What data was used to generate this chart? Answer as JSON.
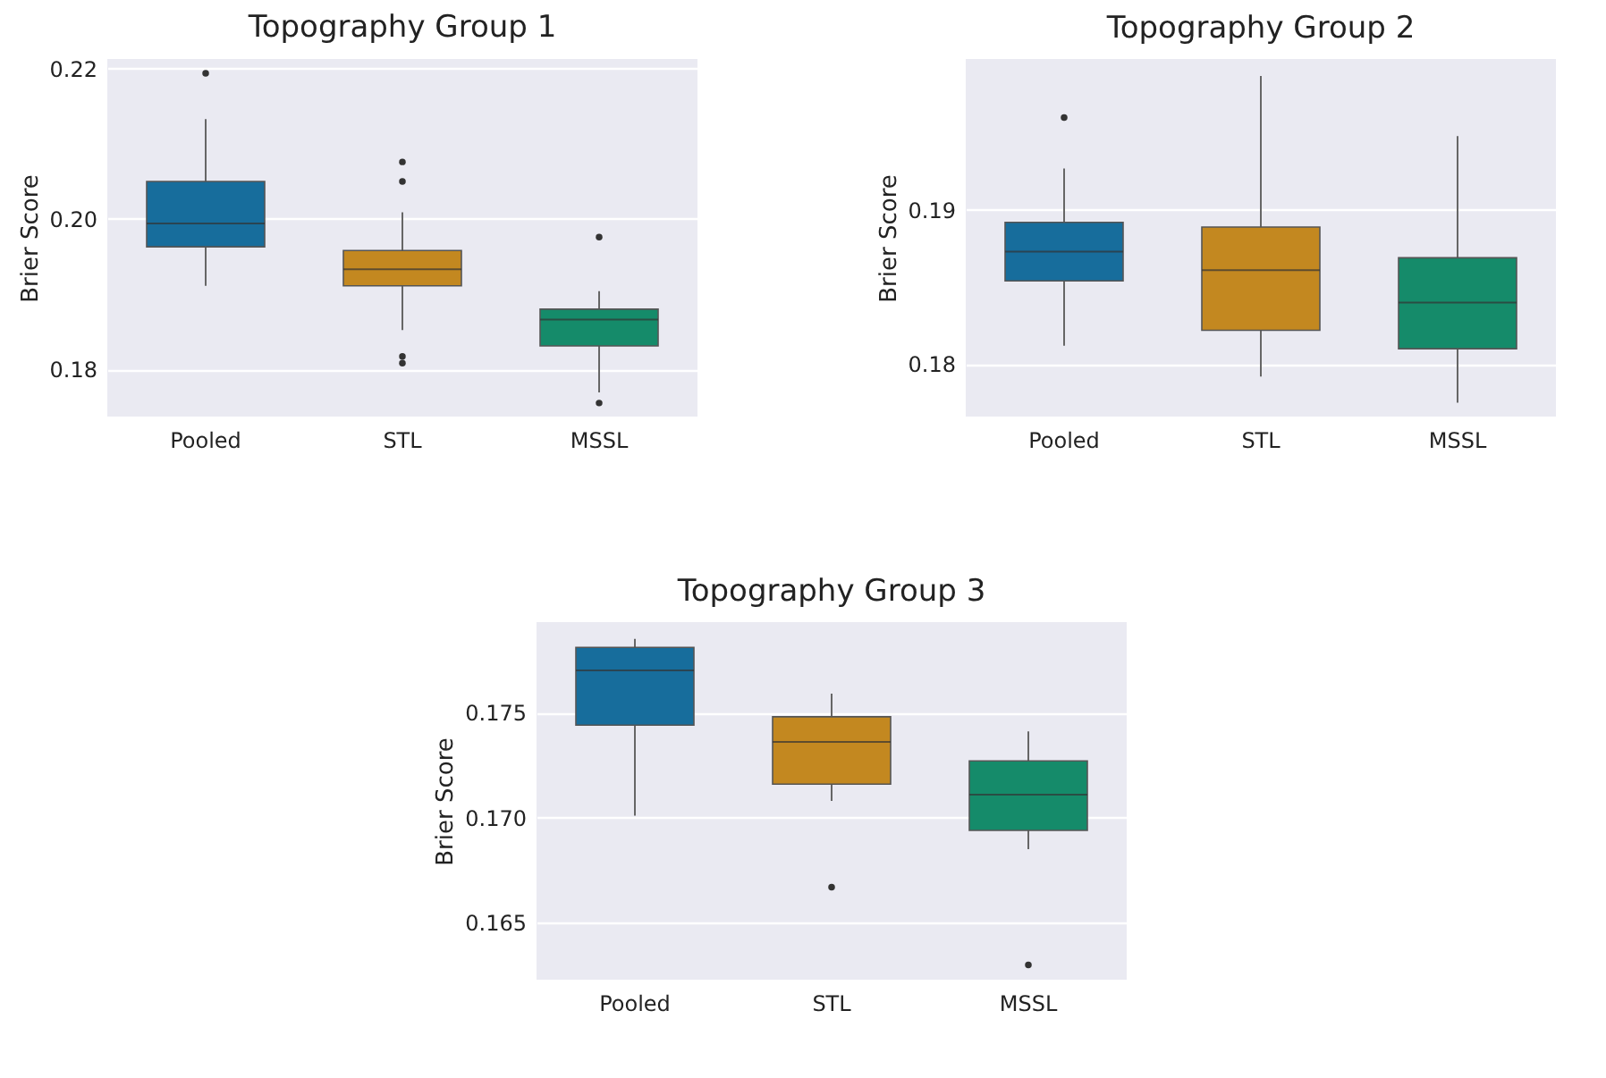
{
  "chart_data": [
    {
      "type": "box",
      "title": "Topography Group 1",
      "ylabel": "Brier Score",
      "categories": [
        "Pooled",
        "STL",
        "MSSL"
      ],
      "colors": [
        "#176d9c",
        "#c38820",
        "#158b6a"
      ],
      "grid": "y",
      "ylim": [
        0.1737,
        0.2213
      ],
      "yticks": [
        0.22,
        {
          "value": 0.2,
          "label": "0.20"
        },
        0.18
      ],
      "boxes": [
        {
          "low": 0.1911,
          "q1": 0.1963,
          "median": 0.1994,
          "q3": 0.205,
          "high": 0.2133,
          "outliers": [
            0.2194
          ]
        },
        {
          "low": 0.1852,
          "q1": 0.1911,
          "median": 0.1933,
          "q3": 0.1958,
          "high": 0.2009,
          "outliers": [
            0.2076,
            0.205,
            0.1817,
            0.1808
          ]
        },
        {
          "low": 0.1769,
          "q1": 0.1831,
          "median": 0.1866,
          "q3": 0.188,
          "high": 0.1904,
          "outliers": [
            0.1976,
            0.1755
          ]
        }
      ]
    },
    {
      "type": "box",
      "title": "Topography Group 2",
      "ylabel": "Brier Score",
      "categories": [
        "Pooled",
        "STL",
        "MSSL"
      ],
      "colors": [
        "#176d9c",
        "#c38820",
        "#158b6a"
      ],
      "grid": "y",
      "ylim": [
        0.1766,
        0.1998
      ],
      "yticks": [
        0.19,
        0.18
      ],
      "boxes": [
        {
          "low": 0.1812,
          "q1": 0.1854,
          "median": 0.1873,
          "q3": 0.1892,
          "high": 0.1927,
          "outliers": [
            0.196
          ]
        },
        {
          "low": 0.1792,
          "q1": 0.1822,
          "median": 0.1861,
          "q3": 0.1889,
          "high": 0.1987
        },
        {
          "low": 0.1775,
          "q1": 0.181,
          "median": 0.184,
          "q3": 0.1869,
          "high": 0.1948
        }
      ]
    },
    {
      "type": "box",
      "title": "Topography Group 3",
      "ylabel": "Brier Score",
      "categories": [
        "Pooled",
        "STL",
        "MSSL"
      ],
      "colors": [
        "#176d9c",
        "#c38820",
        "#158b6a"
      ],
      "grid": "y",
      "ylim": [
        0.1623,
        0.1793
      ],
      "yticks": [
        0.175,
        {
          "value": 0.17,
          "label": "0.170"
        },
        0.165
      ],
      "boxes": [
        {
          "low": 0.1701,
          "q1": 0.1744,
          "median": 0.177,
          "q3": 0.1781,
          "high": 0.1785
        },
        {
          "low": 0.1708,
          "q1": 0.1716,
          "median": 0.1736,
          "q3": 0.1748,
          "high": 0.1759,
          "outliers": [
            0.1667
          ]
        },
        {
          "low": 0.1685,
          "q1": 0.1694,
          "median": 0.1711,
          "q3": 0.1727,
          "high": 0.1741,
          "outliers": [
            0.163
          ]
        }
      ]
    }
  ]
}
